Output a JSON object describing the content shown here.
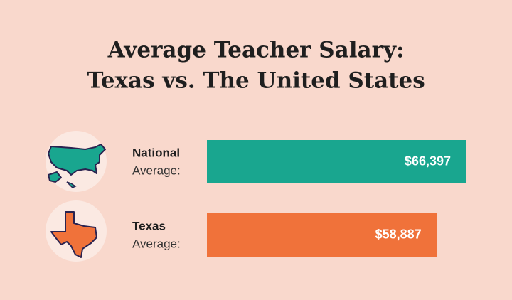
{
  "chart_data": {
    "type": "bar",
    "title": [
      "Average Teacher Salary:",
      "Texas vs. The United States"
    ],
    "categories": [
      "National",
      "Texas"
    ],
    "category_sublabels": [
      "Average:",
      "Average:"
    ],
    "values": [
      66397,
      58887
    ],
    "value_labels": [
      "$66,397",
      "$58,887"
    ],
    "colors": [
      "#19a68f",
      "#f0723a"
    ]
  }
}
